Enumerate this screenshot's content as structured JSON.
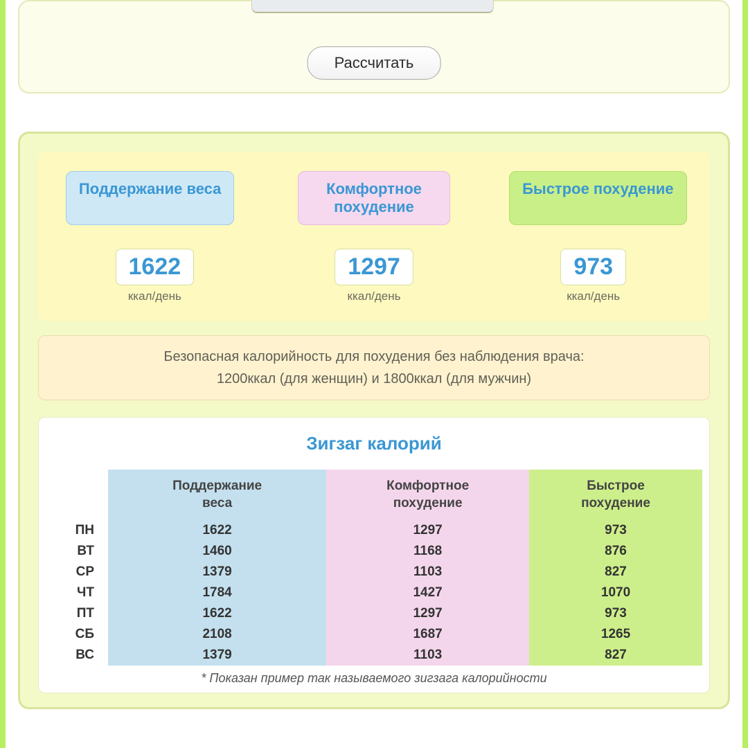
{
  "form": {
    "calculate_label": "Рассчитать"
  },
  "goals": {
    "maintain": {
      "label": "Поддержание веса",
      "value": "1622",
      "unit": "ккал/день"
    },
    "comfort": {
      "label": "Комфортное похудение",
      "value": "1297",
      "unit": "ккал/день"
    },
    "fast": {
      "label": "Быстрое похудение",
      "value": "973",
      "unit": "ккал/день"
    }
  },
  "safety": {
    "line1": "Безопасная калорийность для похудения без наблюдения врача:",
    "line2": "1200ккал (для женщин) и 1800ккал (для мужчин)"
  },
  "zigzag": {
    "title": "Зигзаг калорий",
    "columns": {
      "maintain": "Поддержание веса",
      "comfort": "Комфортное похудение",
      "fast": "Быстрое похудение"
    },
    "column_colors": {
      "maintain": "#c4e0ee",
      "comfort": "#f4d6ec",
      "fast": "#cdef8b"
    },
    "rows": [
      {
        "day": "ПН",
        "maintain": "1622",
        "comfort": "1297",
        "fast": "973"
      },
      {
        "day": "ВТ",
        "maintain": "1460",
        "comfort": "1168",
        "fast": "876"
      },
      {
        "day": "СР",
        "maintain": "1379",
        "comfort": "1103",
        "fast": "827"
      },
      {
        "day": "ЧТ",
        "maintain": "1784",
        "comfort": "1427",
        "fast": "1070"
      },
      {
        "day": "ПТ",
        "maintain": "1622",
        "comfort": "1297",
        "fast": "973"
      },
      {
        "day": "СБ",
        "maintain": "2108",
        "comfort": "1687",
        "fast": "1265"
      },
      {
        "day": "ВС",
        "maintain": "1379",
        "comfort": "1103",
        "fast": "827"
      }
    ],
    "footnote": "* Показан пример так называемого зигзага калорийности"
  },
  "colors": {
    "accent_blue": "#3a97d4",
    "panel_bg": "#f4f9c8",
    "goals_bg": "#fdf9bf",
    "page_accent_green": "#b8ee62"
  }
}
